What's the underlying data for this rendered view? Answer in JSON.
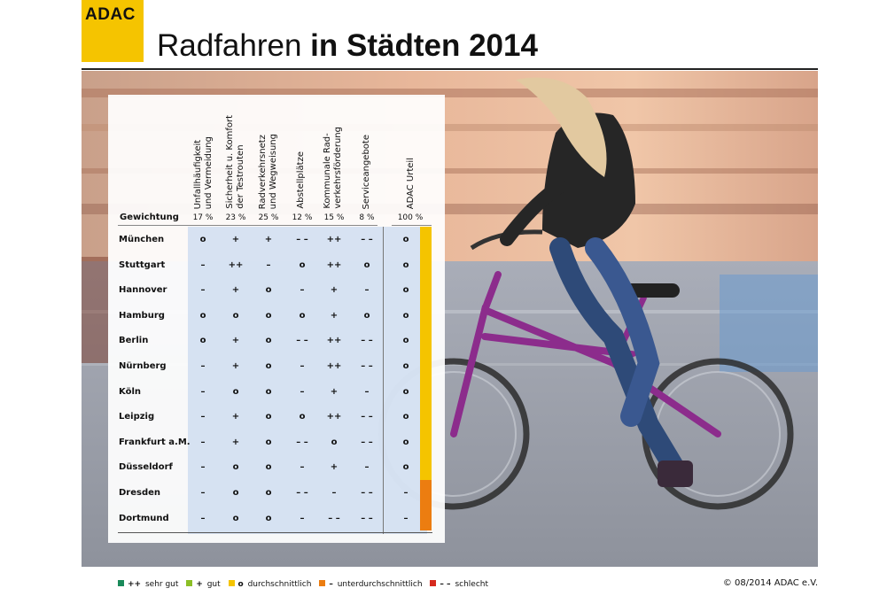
{
  "logo": {
    "text": "ADAC"
  },
  "title": {
    "light": "Radfahren ",
    "bold": "in Städten 2014"
  },
  "table": {
    "weight_label": "Gewichtung",
    "columns": [
      {
        "header": "Unfallhäufigkeit\nund Vermeidung",
        "weight": "17 %"
      },
      {
        "header": "Sicherheit u. Komfort\nder Testrouten",
        "weight": "23 %"
      },
      {
        "header": "Radverkehrsnetz\nund Wegweisung",
        "weight": "25 %"
      },
      {
        "header": "Abstellplätze",
        "weight": "12 %"
      },
      {
        "header": "Kommunale Rad-\nverkehrsförderung",
        "weight": "15 %"
      },
      {
        "header": "Serviceangebote",
        "weight": "8 %"
      },
      {
        "header": "ADAC Urteil",
        "weight": "100 %"
      }
    ],
    "rows": [
      {
        "city": "München",
        "values": [
          "o",
          "+",
          "+",
          "– –",
          "++",
          "– –",
          "o"
        ]
      },
      {
        "city": "Stuttgart",
        "values": [
          "–",
          "++",
          "–",
          "o",
          "++",
          "o",
          "o"
        ]
      },
      {
        "city": "Hannover",
        "values": [
          "–",
          "+",
          "o",
          "–",
          "+",
          "–",
          "o"
        ]
      },
      {
        "city": "Hamburg",
        "values": [
          "o",
          "o",
          "o",
          "o",
          "+",
          "o",
          "o"
        ]
      },
      {
        "city": "Berlin",
        "values": [
          "o",
          "+",
          "o",
          "– –",
          "++",
          "– –",
          "o"
        ]
      },
      {
        "city": "Nürnberg",
        "values": [
          "–",
          "+",
          "o",
          "–",
          "++",
          "– –",
          "o"
        ]
      },
      {
        "city": "Köln",
        "values": [
          "–",
          "o",
          "o",
          "–",
          "+",
          "–",
          "o"
        ]
      },
      {
        "city": "Leipzig",
        "values": [
          "–",
          "+",
          "o",
          "o",
          "++",
          "– –",
          "o"
        ]
      },
      {
        "city": "Frankfurt a.M.",
        "values": [
          "–",
          "+",
          "o",
          "– –",
          "o",
          "– –",
          "o"
        ]
      },
      {
        "city": "Düsseldorf",
        "values": [
          "–",
          "o",
          "o",
          "–",
          "+",
          "–",
          "o"
        ]
      },
      {
        "city": "Dresden",
        "values": [
          "–",
          "o",
          "o",
          "– –",
          "–",
          "– –",
          "–"
        ]
      },
      {
        "city": "Dortmund",
        "values": [
          "–",
          "o",
          "o",
          "–",
          "– –",
          "– –",
          "–"
        ]
      }
    ]
  },
  "legend": [
    {
      "symbol": "++",
      "label": "sehr gut",
      "color": "#1a8a5a"
    },
    {
      "symbol": "+",
      "label": "gut",
      "color": "#8cbf26"
    },
    {
      "symbol": "o",
      "label": "durchschnittlich",
      "color": "#f5c400"
    },
    {
      "symbol": "–",
      "label": "unterdurchschnittlich",
      "color": "#ec7d10"
    },
    {
      "symbol": "– –",
      "label": "schlecht",
      "color": "#d62a1e"
    }
  ],
  "copyright": "© 08/2014 ADAC e.V."
}
